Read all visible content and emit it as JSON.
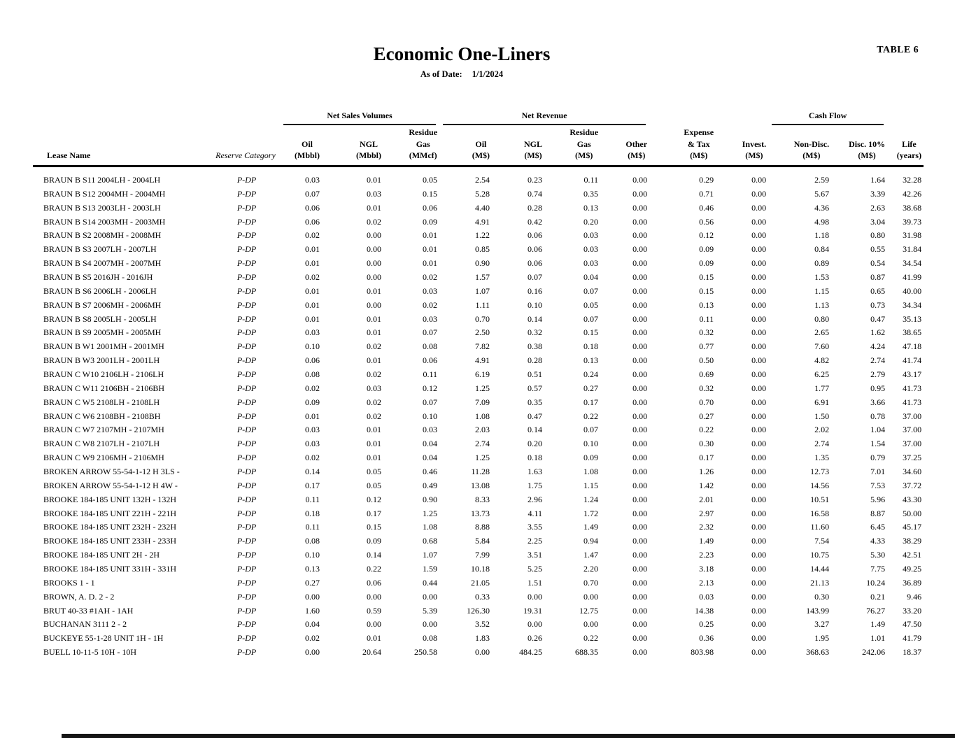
{
  "page": {
    "table_label": "TABLE 6",
    "title": "Economic One-Liners",
    "as_of_label": "As of Date:",
    "as_of_date": "1/1/2024"
  },
  "colors": {
    "ink": "#000000",
    "paper": "#ffffff"
  },
  "table": {
    "group_row": [
      {
        "name": "spacer-lease-category",
        "label": "",
        "span": 2,
        "underline": false
      },
      {
        "name": "group-net-sales-volumes",
        "label": "Net Sales Volumes",
        "span": 3,
        "underline": true
      },
      {
        "name": "group-net-revenue",
        "label": "Net Revenue",
        "span": 4,
        "underline": true
      },
      {
        "name": "spacer-expense-invest",
        "label": "",
        "span": 2,
        "underline": false
      },
      {
        "name": "group-cash-flow",
        "label": "Cash Flow",
        "span": 2,
        "underline": true
      },
      {
        "name": "spacer-life",
        "label": "",
        "span": 1,
        "underline": false
      }
    ],
    "columns": [
      {
        "key": "lease-name",
        "cls": "c-lease-h",
        "lines": [
          "Lease Name"
        ]
      },
      {
        "key": "reserve-category",
        "cls": "c-cat-h",
        "lines": [
          "Reserve Category"
        ]
      },
      {
        "key": "oil-mbbl",
        "cls": "",
        "lines": [
          "Oil",
          "(Mbbl)"
        ]
      },
      {
        "key": "ngl-mbbl",
        "cls": "",
        "lines": [
          "NGL",
          "(Mbbl)"
        ]
      },
      {
        "key": "residue-gas-mmcf",
        "cls": "",
        "lines": [
          "Residue",
          "Gas",
          "(MMcf)"
        ]
      },
      {
        "key": "oil-ms",
        "cls": "",
        "lines": [
          "Oil",
          "(M$)"
        ]
      },
      {
        "key": "ngl-ms",
        "cls": "",
        "lines": [
          "NGL",
          "(M$)"
        ]
      },
      {
        "key": "residue-gas-ms",
        "cls": "",
        "lines": [
          "Residue",
          "Gas",
          "(M$)"
        ]
      },
      {
        "key": "other-ms",
        "cls": "",
        "lines": [
          "Other",
          "(M$)"
        ]
      },
      {
        "key": "expense-tax-ms",
        "cls": "",
        "lines": [
          "Expense",
          "& Tax",
          "(M$)"
        ]
      },
      {
        "key": "invest-ms",
        "cls": "",
        "lines": [
          "Invest.",
          "(M$)"
        ]
      },
      {
        "key": "non-disc-ms",
        "cls": "",
        "lines": [
          "Non-Disc.",
          "(M$)"
        ]
      },
      {
        "key": "disc-10-ms",
        "cls": "",
        "lines": [
          "Disc. 10%",
          "(M$)"
        ]
      },
      {
        "key": "life-years",
        "cls": "",
        "lines": [
          "Life",
          "(years)"
        ]
      }
    ],
    "rows": [
      [
        "BRAUN B S11 2004LH - 2004LH",
        "P-DP",
        "0.03",
        "0.01",
        "0.05",
        "2.54",
        "0.23",
        "0.11",
        "0.00",
        "0.29",
        "0.00",
        "2.59",
        "1.64",
        "32.28"
      ],
      [
        "BRAUN B S12 2004MH - 2004MH",
        "P-DP",
        "0.07",
        "0.03",
        "0.15",
        "5.28",
        "0.74",
        "0.35",
        "0.00",
        "0.71",
        "0.00",
        "5.67",
        "3.39",
        "42.26"
      ],
      [
        "BRAUN B S13 2003LH - 2003LH",
        "P-DP",
        "0.06",
        "0.01",
        "0.06",
        "4.40",
        "0.28",
        "0.13",
        "0.00",
        "0.46",
        "0.00",
        "4.36",
        "2.63",
        "38.68"
      ],
      [
        "BRAUN B S14 2003MH - 2003MH",
        "P-DP",
        "0.06",
        "0.02",
        "0.09",
        "4.91",
        "0.42",
        "0.20",
        "0.00",
        "0.56",
        "0.00",
        "4.98",
        "3.04",
        "39.73"
      ],
      [
        "BRAUN B S2 2008MH - 2008MH",
        "P-DP",
        "0.02",
        "0.00",
        "0.01",
        "1.22",
        "0.06",
        "0.03",
        "0.00",
        "0.12",
        "0.00",
        "1.18",
        "0.80",
        "31.98"
      ],
      [
        "BRAUN B S3 2007LH - 2007LH",
        "P-DP",
        "0.01",
        "0.00",
        "0.01",
        "0.85",
        "0.06",
        "0.03",
        "0.00",
        "0.09",
        "0.00",
        "0.84",
        "0.55",
        "31.84"
      ],
      [
        "BRAUN B S4 2007MH - 2007MH",
        "P-DP",
        "0.01",
        "0.00",
        "0.01",
        "0.90",
        "0.06",
        "0.03",
        "0.00",
        "0.09",
        "0.00",
        "0.89",
        "0.54",
        "34.54"
      ],
      [
        "BRAUN B S5 2016JH - 2016JH",
        "P-DP",
        "0.02",
        "0.00",
        "0.02",
        "1.57",
        "0.07",
        "0.04",
        "0.00",
        "0.15",
        "0.00",
        "1.53",
        "0.87",
        "41.99"
      ],
      [
        "BRAUN B S6 2006LH - 2006LH",
        "P-DP",
        "0.01",
        "0.01",
        "0.03",
        "1.07",
        "0.16",
        "0.07",
        "0.00",
        "0.15",
        "0.00",
        "1.15",
        "0.65",
        "40.00"
      ],
      [
        "BRAUN B S7 2006MH - 2006MH",
        "P-DP",
        "0.01",
        "0.00",
        "0.02",
        "1.11",
        "0.10",
        "0.05",
        "0.00",
        "0.13",
        "0.00",
        "1.13",
        "0.73",
        "34.34"
      ],
      [
        "BRAUN B S8 2005LH - 2005LH",
        "P-DP",
        "0.01",
        "0.01",
        "0.03",
        "0.70",
        "0.14",
        "0.07",
        "0.00",
        "0.11",
        "0.00",
        "0.80",
        "0.47",
        "35.13"
      ],
      [
        "BRAUN B S9 2005MH - 2005MH",
        "P-DP",
        "0.03",
        "0.01",
        "0.07",
        "2.50",
        "0.32",
        "0.15",
        "0.00",
        "0.32",
        "0.00",
        "2.65",
        "1.62",
        "38.65"
      ],
      [
        "BRAUN B W1 2001MH - 2001MH",
        "P-DP",
        "0.10",
        "0.02",
        "0.08",
        "7.82",
        "0.38",
        "0.18",
        "0.00",
        "0.77",
        "0.00",
        "7.60",
        "4.24",
        "47.18"
      ],
      [
        "BRAUN B W3 2001LH - 2001LH",
        "P-DP",
        "0.06",
        "0.01",
        "0.06",
        "4.91",
        "0.28",
        "0.13",
        "0.00",
        "0.50",
        "0.00",
        "4.82",
        "2.74",
        "41.74"
      ],
      [
        "BRAUN C W10 2106LH - 2106LH",
        "P-DP",
        "0.08",
        "0.02",
        "0.11",
        "6.19",
        "0.51",
        "0.24",
        "0.00",
        "0.69",
        "0.00",
        "6.25",
        "2.79",
        "43.17"
      ],
      [
        "BRAUN C W11 2106BH - 2106BH",
        "P-DP",
        "0.02",
        "0.03",
        "0.12",
        "1.25",
        "0.57",
        "0.27",
        "0.00",
        "0.32",
        "0.00",
        "1.77",
        "0.95",
        "41.73"
      ],
      [
        "BRAUN C W5 2108LH - 2108LH",
        "P-DP",
        "0.09",
        "0.02",
        "0.07",
        "7.09",
        "0.35",
        "0.17",
        "0.00",
        "0.70",
        "0.00",
        "6.91",
        "3.66",
        "41.73"
      ],
      [
        "BRAUN C W6 2108BH - 2108BH",
        "P-DP",
        "0.01",
        "0.02",
        "0.10",
        "1.08",
        "0.47",
        "0.22",
        "0.00",
        "0.27",
        "0.00",
        "1.50",
        "0.78",
        "37.00"
      ],
      [
        "BRAUN C W7 2107MH - 2107MH",
        "P-DP",
        "0.03",
        "0.01",
        "0.03",
        "2.03",
        "0.14",
        "0.07",
        "0.00",
        "0.22",
        "0.00",
        "2.02",
        "1.04",
        "37.00"
      ],
      [
        "BRAUN C W8 2107LH - 2107LH",
        "P-DP",
        "0.03",
        "0.01",
        "0.04",
        "2.74",
        "0.20",
        "0.10",
        "0.00",
        "0.30",
        "0.00",
        "2.74",
        "1.54",
        "37.00"
      ],
      [
        "BRAUN C W9 2106MH - 2106MH",
        "P-DP",
        "0.02",
        "0.01",
        "0.04",
        "1.25",
        "0.18",
        "0.09",
        "0.00",
        "0.17",
        "0.00",
        "1.35",
        "0.79",
        "37.25"
      ],
      [
        "BROKEN ARROW 55-54-1-12 H 3LS -",
        "P-DP",
        "0.14",
        "0.05",
        "0.46",
        "11.28",
        "1.63",
        "1.08",
        "0.00",
        "1.26",
        "0.00",
        "12.73",
        "7.01",
        "34.60"
      ],
      [
        "BROKEN ARROW 55-54-1-12 H 4W -",
        "P-DP",
        "0.17",
        "0.05",
        "0.49",
        "13.08",
        "1.75",
        "1.15",
        "0.00",
        "1.42",
        "0.00",
        "14.56",
        "7.53",
        "37.72"
      ],
      [
        "BROOKE 184-185 UNIT 132H - 132H",
        "P-DP",
        "0.11",
        "0.12",
        "0.90",
        "8.33",
        "2.96",
        "1.24",
        "0.00",
        "2.01",
        "0.00",
        "10.51",
        "5.96",
        "43.30"
      ],
      [
        "BROOKE 184-185 UNIT 221H - 221H",
        "P-DP",
        "0.18",
        "0.17",
        "1.25",
        "13.73",
        "4.11",
        "1.72",
        "0.00",
        "2.97",
        "0.00",
        "16.58",
        "8.87",
        "50.00"
      ],
      [
        "BROOKE 184-185 UNIT 232H - 232H",
        "P-DP",
        "0.11",
        "0.15",
        "1.08",
        "8.88",
        "3.55",
        "1.49",
        "0.00",
        "2.32",
        "0.00",
        "11.60",
        "6.45",
        "45.17"
      ],
      [
        "BROOKE 184-185 UNIT 233H - 233H",
        "P-DP",
        "0.08",
        "0.09",
        "0.68",
        "5.84",
        "2.25",
        "0.94",
        "0.00",
        "1.49",
        "0.00",
        "7.54",
        "4.33",
        "38.29"
      ],
      [
        "BROOKE 184-185 UNIT 2H - 2H",
        "P-DP",
        "0.10",
        "0.14",
        "1.07",
        "7.99",
        "3.51",
        "1.47",
        "0.00",
        "2.23",
        "0.00",
        "10.75",
        "5.30",
        "42.51"
      ],
      [
        "BROOKE 184-185 UNIT 331H - 331H",
        "P-DP",
        "0.13",
        "0.22",
        "1.59",
        "10.18",
        "5.25",
        "2.20",
        "0.00",
        "3.18",
        "0.00",
        "14.44",
        "7.75",
        "49.25"
      ],
      [
        "BROOKS 1 - 1",
        "P-DP",
        "0.27",
        "0.06",
        "0.44",
        "21.05",
        "1.51",
        "0.70",
        "0.00",
        "2.13",
        "0.00",
        "21.13",
        "10.24",
        "36.89"
      ],
      [
        "BROWN, A. D. 2 - 2",
        "P-DP",
        "0.00",
        "0.00",
        "0.00",
        "0.33",
        "0.00",
        "0.00",
        "0.00",
        "0.03",
        "0.00",
        "0.30",
        "0.21",
        "9.46"
      ],
      [
        "BRUT 40-33 #1AH - 1AH",
        "P-DP",
        "1.60",
        "0.59",
        "5.39",
        "126.30",
        "19.31",
        "12.75",
        "0.00",
        "14.38",
        "0.00",
        "143.99",
        "76.27",
        "33.20"
      ],
      [
        "BUCHANAN 3111 2 - 2",
        "P-DP",
        "0.04",
        "0.00",
        "0.00",
        "3.52",
        "0.00",
        "0.00",
        "0.00",
        "0.25",
        "0.00",
        "3.27",
        "1.49",
        "47.50"
      ],
      [
        "BUCKEYE 55-1-28 UNIT 1H - 1H",
        "P-DP",
        "0.02",
        "0.01",
        "0.08",
        "1.83",
        "0.26",
        "0.22",
        "0.00",
        "0.36",
        "0.00",
        "1.95",
        "1.01",
        "41.79"
      ],
      [
        "BUELL 10-11-5 10H - 10H",
        "P-DP",
        "0.00",
        "20.64",
        "250.58",
        "0.00",
        "484.25",
        "688.35",
        "0.00",
        "803.98",
        "0.00",
        "368.63",
        "242.06",
        "18.37"
      ]
    ]
  }
}
